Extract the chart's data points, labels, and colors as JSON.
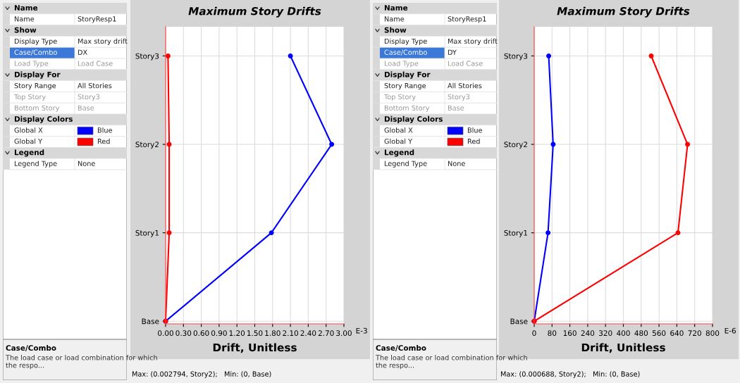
{
  "chart_data": [
    {
      "type": "other",
      "colors": [
        "#0000ff",
        "#ff0000"
      ],
      "annotations": [
        "Name",
        "Name",
        "StoryResp1",
        "Show",
        "Display Type",
        "Max story drift",
        "Case/Combo",
        "DX",
        "Load Type",
        "Load Case",
        "Display For",
        "Story Range",
        "All Stories",
        "Top Story",
        "Story3",
        "Bottom Story",
        "Base",
        "Display Colors",
        "Global X",
        "Blue",
        "Global Y",
        "Red",
        "Legend",
        "Legend Type",
        "None",
        "Case/Combo",
        "The load case or load combination for which the respo..."
      ]
    },
    {
      "type": "line",
      "orientation": "horizontal",
      "title": "Maximum Story Drifts",
      "xlabel": "Drift, Unitless",
      "categories": [
        "Story3",
        "Story2",
        "Story1",
        "Base"
      ],
      "xlim": [
        0,
        3.0
      ],
      "xticks": [
        {
          "value": 0,
          "label": "0.00"
        },
        {
          "value": 0.3,
          "label": "0.30"
        },
        {
          "value": 0.6,
          "label": "0.60"
        },
        {
          "value": 0.9,
          "label": "0.90"
        },
        {
          "value": 1.2,
          "label": "1.20"
        },
        {
          "value": 1.5,
          "label": "1.50"
        },
        {
          "value": 1.8,
          "label": "1.80"
        },
        {
          "value": 2.1,
          "label": "2.10"
        },
        {
          "value": 2.4,
          "label": "2.40"
        },
        {
          "value": 2.7,
          "label": "2.70"
        },
        {
          "value": 3.0,
          "label": "3.00"
        }
      ],
      "grid": true,
      "marker": "circle",
      "line_style": "solid",
      "series": [
        {
          "color": "#0000ff",
          "values": [
            2.1,
            2.794,
            1.78,
            0
          ]
        },
        {
          "color": "#ff0000",
          "values": [
            0.04,
            0.06,
            0.06,
            0
          ]
        }
      ],
      "annotations": [
        "E-3",
        "Max: (0.002794, Story2);   Min: (0, Base)"
      ]
    },
    {
      "type": "other",
      "colors": [
        "#0000ff",
        "#ff0000"
      ],
      "annotations": [
        "Name",
        "Name",
        "StoryResp1",
        "Show",
        "Display Type",
        "Max story drift",
        "Case/Combo",
        "DY",
        "Load Type",
        "Load Case",
        "Display For",
        "Story Range",
        "All Stories",
        "Top Story",
        "Story3",
        "Bottom Story",
        "Base",
        "Display Colors",
        "Global X",
        "Blue",
        "Global Y",
        "Red",
        "Legend",
        "Legend Type",
        "None",
        "Case/Combo",
        "The load case or load combination for which the respo..."
      ]
    },
    {
      "type": "line",
      "orientation": "horizontal",
      "title": "Maximum Story Drifts",
      "xlabel": "Drift, Unitless",
      "categories": [
        "Story3",
        "Story2",
        "Story1",
        "Base"
      ],
      "xlim": [
        0,
        800
      ],
      "xticks": [
        0,
        80,
        160,
        240,
        320,
        400,
        480,
        560,
        640,
        720,
        800
      ],
      "grid": true,
      "marker": "circle",
      "line_style": "solid",
      "series": [
        {
          "color": "#0000ff",
          "values": [
            65,
            85,
            62,
            0
          ]
        },
        {
          "color": "#ff0000",
          "values": [
            525,
            688,
            645,
            0
          ]
        }
      ],
      "annotations": [
        "E-6",
        "Max: (0.000688, Story2);   Min: (0, Base)"
      ]
    }
  ]
}
